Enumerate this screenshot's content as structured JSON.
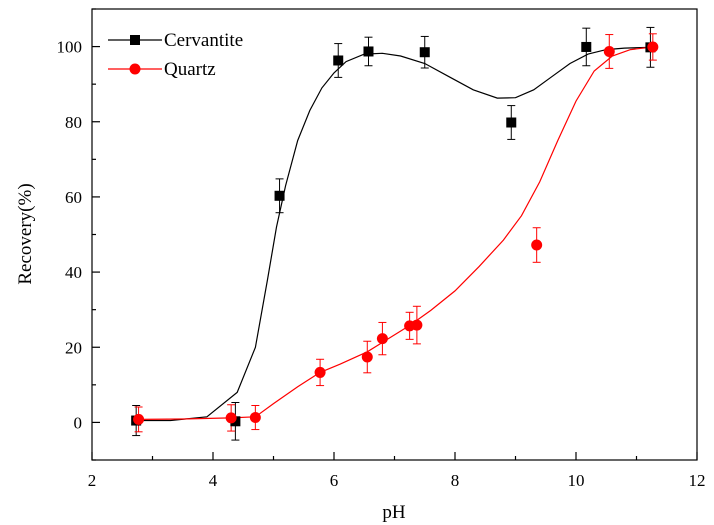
{
  "chart_data": {
    "type": "scatter",
    "title": "",
    "xlabel": "pH",
    "ylabel": "Recovery(%)",
    "xlim": [
      2,
      12
    ],
    "ylim": [
      -10,
      110
    ],
    "x_ticks": [
      2,
      4,
      6,
      8,
      10,
      12
    ],
    "y_ticks": [
      0,
      20,
      40,
      60,
      80,
      100
    ],
    "grid": false,
    "legend_position": "top-left",
    "series": [
      {
        "name": "Cervantite",
        "marker": "square",
        "color": "#000000",
        "x": [
          2.73,
          4.37,
          5.1,
          6.07,
          6.57,
          7.5,
          8.93,
          10.17,
          11.23
        ],
        "y": [
          0.5,
          0.3,
          60.3,
          96.3,
          98.7,
          98.5,
          79.8,
          99.9,
          99.8
        ],
        "error": [
          4,
          5,
          4.5,
          4.5,
          3.8,
          4.2,
          4.5,
          5,
          5.3
        ],
        "fit_x": [
          2.73,
          3.3,
          3.9,
          4.4,
          4.7,
          4.9,
          5.05,
          5.2,
          5.4,
          5.6,
          5.8,
          6.0,
          6.2,
          6.5,
          6.8,
          7.1,
          7.5,
          7.9,
          8.3,
          8.7,
          9.0,
          9.3,
          9.6,
          9.9,
          10.2,
          10.5,
          10.8,
          11.23
        ],
        "fit_y": [
          0.5,
          0.5,
          1.5,
          8,
          20,
          38,
          52,
          63,
          75,
          83,
          89,
          93,
          96,
          98,
          98.2,
          97.5,
          95.5,
          92,
          88.5,
          86.3,
          86.4,
          88.5,
          92,
          95.5,
          98,
          99.2,
          99.6,
          99.8
        ]
      },
      {
        "name": "Quartz",
        "marker": "circle",
        "color": "#ff0000",
        "x": [
          2.77,
          4.3,
          4.7,
          5.77,
          6.55,
          6.8,
          7.25,
          7.37,
          9.35,
          10.55,
          11.27
        ],
        "y": [
          0.8,
          1.2,
          1.3,
          13.3,
          17.4,
          22.3,
          25.7,
          25.9,
          47.2,
          98.7,
          99.9
        ],
        "error": [
          3.3,
          3.5,
          3.2,
          3.5,
          4.2,
          4.3,
          3.6,
          5,
          4.6,
          4.5,
          3.5
        ],
        "fit_x": [
          2.77,
          3.5,
          4.3,
          4.7,
          5.0,
          5.4,
          5.77,
          6.1,
          6.55,
          6.8,
          7.25,
          7.6,
          8.0,
          8.4,
          8.8,
          9.1,
          9.4,
          9.7,
          10.0,
          10.3,
          10.6,
          10.9,
          11.27
        ],
        "fit_y": [
          0.8,
          0.9,
          1.2,
          1.5,
          5,
          9.5,
          13.3,
          15.5,
          18.8,
          21.3,
          25.8,
          29.8,
          35,
          41.5,
          48.5,
          55,
          64,
          75,
          85.5,
          93.5,
          97.5,
          99.2,
          99.9
        ]
      }
    ]
  }
}
